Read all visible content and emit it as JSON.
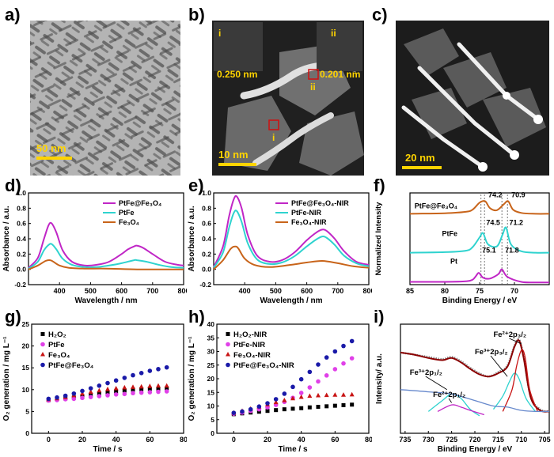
{
  "panels": {
    "a": {
      "label": "a)",
      "scalebar": "50 nm"
    },
    "b": {
      "label": "b)",
      "scalebar": "10 nm",
      "lattice_i": "0.250 nm",
      "lattice_ii": "0.201 nm",
      "roi_i": "i",
      "roi_ii": "ii",
      "inset_i": "i",
      "inset_ii": "ii"
    },
    "c": {
      "label": "c)",
      "scalebar": "20 nm"
    },
    "d": {
      "label": "d)"
    },
    "e": {
      "label": "e)"
    },
    "f": {
      "label": "f)"
    },
    "g": {
      "label": "g)"
    },
    "h": {
      "label": "h)"
    },
    "i": {
      "label": "i)"
    }
  },
  "colors": {
    "magenta": "#c026c6",
    "cyan": "#2fd3cf",
    "orange": "#c8641a",
    "black": "#000000",
    "red": "#c81414",
    "blue": "#1a1aa8",
    "pink": "#e040e8"
  },
  "chart_data": [
    {
      "id": "d",
      "type": "line",
      "xlabel": "Wavelength / nm",
      "ylabel": "Absorbance / a.u.",
      "xlim": [
        300,
        800
      ],
      "ylim": [
        -0.2,
        1.0
      ],
      "xticks": [
        400,
        500,
        600,
        700,
        800
      ],
      "yticks": [
        -0.2,
        0.0,
        0.2,
        0.4,
        0.6,
        0.8,
        1.0
      ],
      "xtick_labels": [
        "400",
        "500",
        "600",
        "700",
        "800"
      ],
      "ytick_labels": [
        "-0.2",
        "0.0",
        "0.2",
        "0.4",
        "0.6",
        "0.8",
        "1.0"
      ],
      "legend": "top-right",
      "series": [
        {
          "name": "PtFe@Fe₃O₄",
          "color": "#c026c6",
          "x": [
            300,
            330,
            350,
            365,
            375,
            390,
            410,
            440,
            480,
            520,
            560,
            600,
            620,
            640,
            650,
            670,
            700,
            740,
            780,
            800
          ],
          "y": [
            0.02,
            0.15,
            0.4,
            0.58,
            0.6,
            0.48,
            0.25,
            0.1,
            0.05,
            0.06,
            0.1,
            0.2,
            0.26,
            0.3,
            0.31,
            0.28,
            0.2,
            0.1,
            0.06,
            0.05
          ]
        },
        {
          "name": "PtFe",
          "color": "#2fd3cf",
          "x": [
            300,
            330,
            350,
            365,
            375,
            390,
            410,
            440,
            480,
            520,
            560,
            600,
            640,
            650,
            680,
            720,
            760,
            800
          ],
          "y": [
            0.01,
            0.1,
            0.25,
            0.32,
            0.33,
            0.26,
            0.14,
            0.06,
            0.03,
            0.03,
            0.05,
            0.08,
            0.12,
            0.12,
            0.1,
            0.06,
            0.03,
            0.02
          ]
        },
        {
          "name": "Fe₃O₄",
          "color": "#c8641a",
          "x": [
            300,
            330,
            355,
            370,
            380,
            400,
            430,
            480,
            550,
            650,
            750,
            800
          ],
          "y": [
            0.0,
            0.05,
            0.11,
            0.12,
            0.1,
            0.05,
            0.02,
            0.01,
            0.01,
            0.0,
            0.0,
            0.0
          ]
        }
      ]
    },
    {
      "id": "e",
      "type": "line",
      "xlabel": "Wavelength / nm",
      "ylabel": "Absorbance / a.u.",
      "xlim": [
        300,
        800
      ],
      "ylim": [
        -0.2,
        1.0
      ],
      "xticks": [
        400,
        500,
        600,
        700,
        800
      ],
      "yticks": [
        -0.2,
        0.0,
        0.2,
        0.4,
        0.6,
        0.8,
        1.0
      ],
      "xtick_labels": [
        "400",
        "500",
        "600",
        "700",
        "800"
      ],
      "ytick_labels": [
        "-0.2",
        "0.0",
        "0.2",
        "0.4",
        "0.6",
        "0.8",
        "1.0"
      ],
      "legend": "top-right",
      "series": [
        {
          "name": "PtFe@Fe₃O₄-NIR",
          "color": "#c026c6",
          "x": [
            300,
            330,
            350,
            365,
            375,
            390,
            410,
            440,
            480,
            520,
            560,
            600,
            630,
            650,
            665,
            690,
            720,
            760,
            800
          ],
          "y": [
            0.03,
            0.3,
            0.7,
            0.92,
            0.95,
            0.8,
            0.45,
            0.18,
            0.1,
            0.12,
            0.22,
            0.38,
            0.48,
            0.52,
            0.5,
            0.4,
            0.24,
            0.1,
            0.06
          ]
        },
        {
          "name": "PtFe-NIR",
          "color": "#2fd3cf",
          "x": [
            300,
            330,
            350,
            365,
            375,
            390,
            410,
            440,
            480,
            520,
            560,
            600,
            630,
            650,
            665,
            690,
            720,
            760,
            800
          ],
          "y": [
            0.02,
            0.22,
            0.55,
            0.74,
            0.76,
            0.62,
            0.34,
            0.13,
            0.07,
            0.09,
            0.17,
            0.3,
            0.39,
            0.43,
            0.41,
            0.32,
            0.18,
            0.08,
            0.04
          ]
        },
        {
          "name": "Fe₃O₄-NIR",
          "color": "#c8641a",
          "x": [
            300,
            330,
            355,
            370,
            380,
            400,
            430,
            480,
            550,
            600,
            650,
            700,
            750,
            800
          ],
          "y": [
            0.0,
            0.12,
            0.27,
            0.3,
            0.27,
            0.14,
            0.06,
            0.03,
            0.06,
            0.09,
            0.11,
            0.08,
            0.04,
            0.02
          ]
        }
      ]
    },
    {
      "id": "f",
      "type": "line",
      "xlabel": "Binding Energy / eV",
      "ylabel": "Normalized Intensity",
      "xlim": [
        85,
        65
      ],
      "ylim": [
        0,
        3.3
      ],
      "xticks": [
        85,
        80,
        75,
        70
      ],
      "xtick_labels": [
        "85",
        "80",
        "75",
        "70"
      ],
      "peak_guides": [
        74.8,
        74.3,
        71.8,
        71.0
      ],
      "series": [
        {
          "name": "PtFe@Fe₃O₄",
          "color": "#c8641a",
          "offset": 2.0,
          "x": [
            85,
            80,
            77,
            76,
            75,
            74.2,
            73.5,
            72.5,
            71.5,
            70.9,
            70.2,
            69,
            67,
            65
          ],
          "y": [
            0.55,
            0.57,
            0.62,
            0.7,
            0.95,
            1.0,
            0.75,
            0.68,
            0.9,
            1.0,
            0.7,
            0.58,
            0.55,
            0.55
          ],
          "peaks": [
            "74.2",
            "70.9"
          ]
        },
        {
          "name": "PtFe",
          "color": "#2fd3cf",
          "offset": 1.0,
          "x": [
            85,
            80,
            77,
            76,
            75,
            74.5,
            73.8,
            72.5,
            71.7,
            71.2,
            70.5,
            69,
            67,
            65
          ],
          "y": [
            0.15,
            0.17,
            0.22,
            0.35,
            0.7,
            0.85,
            0.45,
            0.38,
            0.8,
            1.05,
            0.45,
            0.2,
            0.15,
            0.15
          ],
          "peaks": [
            "74.5",
            "71.2"
          ]
        },
        {
          "name": "Pt",
          "color": "#c026c6",
          "offset": 0.0,
          "x": [
            85,
            80,
            77,
            76,
            75.5,
            75.1,
            74.5,
            73.5,
            72.3,
            71.8,
            71.0,
            69,
            67,
            65
          ],
          "y": [
            0.1,
            0.1,
            0.12,
            0.18,
            0.32,
            0.42,
            0.25,
            0.22,
            0.38,
            0.55,
            0.28,
            0.1,
            0.08,
            0.08
          ],
          "peaks": [
            "75.1",
            "71.8"
          ]
        }
      ]
    },
    {
      "id": "g",
      "type": "scatter",
      "xlabel": "Time / s",
      "ylabel": "O₂ generation / mg L⁻¹",
      "xlim": [
        -10,
        80
      ],
      "ylim": [
        0,
        25
      ],
      "xticks": [
        0,
        20,
        40,
        60,
        80
      ],
      "yticks": [
        0,
        5,
        10,
        15,
        20,
        25
      ],
      "xtick_labels": [
        "0",
        "20",
        "40",
        "60",
        "80"
      ],
      "ytick_labels": [
        "0",
        "5",
        "10",
        "15",
        "20",
        "25"
      ],
      "legend": "top-left",
      "x": [
        0,
        5,
        10,
        15,
        20,
        25,
        30,
        35,
        40,
        45,
        50,
        55,
        60,
        65,
        70
      ],
      "series": [
        {
          "name": "H₂O₂",
          "marker": "square",
          "color": "#000000",
          "values": [
            7.6,
            7.8,
            8.0,
            8.2,
            8.5,
            8.8,
            9.1,
            9.4,
            9.6,
            9.8,
            10.0,
            10.1,
            10.2,
            10.2,
            10.3
          ]
        },
        {
          "name": "PtFe",
          "marker": "circle",
          "color": "#e040e8",
          "values": [
            7.5,
            7.6,
            7.8,
            7.9,
            8.1,
            8.3,
            8.5,
            8.7,
            8.9,
            9.0,
            9.2,
            9.3,
            9.4,
            9.5,
            9.6
          ]
        },
        {
          "name": "Fe₃O₄",
          "marker": "triangle",
          "color": "#c81414",
          "values": [
            7.8,
            8.0,
            8.3,
            8.7,
            9.1,
            9.5,
            9.8,
            10.1,
            10.3,
            10.5,
            10.6,
            10.7,
            10.8,
            10.9,
            10.9
          ]
        },
        {
          "name": "PtFe@Fe₃O₄",
          "marker": "circle",
          "color": "#1a1aa8",
          "values": [
            7.9,
            8.2,
            8.6,
            9.1,
            9.7,
            10.3,
            10.9,
            11.5,
            12.1,
            12.7,
            13.3,
            13.8,
            14.3,
            14.7,
            15.1
          ]
        }
      ]
    },
    {
      "id": "h",
      "type": "scatter",
      "xlabel": "Time / s",
      "ylabel": "O₂ generation / mg L⁻¹",
      "xlim": [
        -10,
        80
      ],
      "ylim": [
        0,
        40
      ],
      "xticks": [
        0,
        20,
        40,
        60,
        80
      ],
      "yticks": [
        0,
        5,
        10,
        15,
        20,
        25,
        30,
        35,
        40
      ],
      "xtick_labels": [
        "0",
        "20",
        "40",
        "60",
        "80"
      ],
      "ytick_labels": [
        "0",
        "5",
        "10",
        "15",
        "20",
        "25",
        "30",
        "35",
        "40"
      ],
      "legend": "top-left",
      "x": [
        0,
        5,
        10,
        15,
        20,
        25,
        30,
        35,
        40,
        45,
        50,
        55,
        60,
        65,
        70
      ],
      "series": [
        {
          "name": "H₂O₂-NIR",
          "marker": "square",
          "color": "#000000",
          "values": [
            7.0,
            7.3,
            7.6,
            7.9,
            8.2,
            8.5,
            8.8,
            9.0,
            9.2,
            9.5,
            9.7,
            9.9,
            10.1,
            10.3,
            10.5
          ]
        },
        {
          "name": "PtFe-NIR",
          "marker": "circle",
          "color": "#e040e8",
          "values": [
            7.2,
            7.6,
            8.2,
            8.8,
            9.5,
            10.4,
            11.5,
            13.0,
            14.8,
            16.8,
            19.0,
            21.2,
            23.5,
            25.6,
            27.5
          ]
        },
        {
          "name": "Fe₃O₄-NIR",
          "marker": "triangle",
          "color": "#c81414",
          "values": [
            7.5,
            8.2,
            9.0,
            9.8,
            10.6,
            11.4,
            12.1,
            12.8,
            13.3,
            13.7,
            13.9,
            14.0,
            14.1,
            14.1,
            14.2
          ]
        },
        {
          "name": "PtFe@Fe₃O₄-NIR",
          "marker": "circle",
          "color": "#1a1aa8",
          "values": [
            7.5,
            8.0,
            8.8,
            9.8,
            11.0,
            12.5,
            14.5,
            17.0,
            19.8,
            22.5,
            25.2,
            27.8,
            30.0,
            32.0,
            33.8
          ]
        }
      ]
    },
    {
      "id": "i",
      "type": "line",
      "xlabel": "Binding Energy / eV",
      "ylabel": "Intensity/ a.u.",
      "xlim": [
        736,
        704
      ],
      "ylim": [
        0,
        1
      ],
      "xticks": [
        735,
        730,
        725,
        720,
        715,
        710,
        705
      ],
      "xtick_labels": [
        "735",
        "730",
        "725",
        "720",
        "715",
        "710",
        "705"
      ],
      "annotations": [
        "Fe²⁺2p₃/₂",
        "Fe³⁺2p₃/₂",
        "Fe³⁺2p₁/₂",
        "Fe²⁺2p₁/₂"
      ],
      "series": [
        {
          "name": "raw",
          "color": "#888888",
          "x": [
            736,
            733,
            730,
            727,
            725,
            723,
            721,
            719,
            717,
            715,
            713,
            711.5,
            710.5,
            709.5,
            708,
            706,
            704
          ],
          "y": [
            0.74,
            0.72,
            0.7,
            0.68,
            0.7,
            0.66,
            0.6,
            0.55,
            0.52,
            0.56,
            0.62,
            0.8,
            0.86,
            0.7,
            0.34,
            0.22,
            0.2
          ]
        },
        {
          "name": "envelope",
          "color": "#8b0000",
          "x": [
            736,
            733,
            730,
            727,
            725,
            723,
            721,
            719,
            717,
            715,
            713,
            711.5,
            710.5,
            709.5,
            708,
            706,
            704
          ],
          "y": [
            0.74,
            0.72,
            0.69,
            0.67,
            0.69,
            0.65,
            0.59,
            0.54,
            0.52,
            0.55,
            0.61,
            0.79,
            0.85,
            0.69,
            0.33,
            0.21,
            0.2
          ]
        },
        {
          "name": "Fe³⁺2p₁/₂",
          "color": "#2fd3cf",
          "x": [
            730,
            727,
            725,
            723,
            721,
            719
          ],
          "y": [
            0.2,
            0.3,
            0.36,
            0.32,
            0.22,
            0.16
          ]
        },
        {
          "name": "Fe²⁺2p₁/₂",
          "color": "#c026c6",
          "x": [
            728,
            725,
            723,
            721,
            718
          ],
          "y": [
            0.2,
            0.26,
            0.24,
            0.21,
            0.17
          ]
        },
        {
          "name": "Fe³⁺2p₃/₂",
          "color": "#2fd3cf",
          "x": [
            716,
            714,
            712.5,
            711.5,
            710.5,
            709,
            707
          ],
          "y": [
            0.22,
            0.34,
            0.48,
            0.55,
            0.5,
            0.32,
            0.2
          ]
        },
        {
          "name": "Fe²⁺2p₃/₂",
          "color": "#c81414",
          "x": [
            714,
            712,
            711,
            710,
            709.2,
            708.2,
            706.5
          ],
          "y": [
            0.2,
            0.4,
            0.62,
            0.76,
            0.7,
            0.4,
            0.2
          ]
        },
        {
          "name": "baseline",
          "color": "#6688cc",
          "x": [
            736,
            730,
            725,
            720,
            716,
            713,
            710,
            707,
            704
          ],
          "y": [
            0.4,
            0.38,
            0.36,
            0.3,
            0.25,
            0.24,
            0.21,
            0.2,
            0.2
          ]
        }
      ]
    }
  ]
}
